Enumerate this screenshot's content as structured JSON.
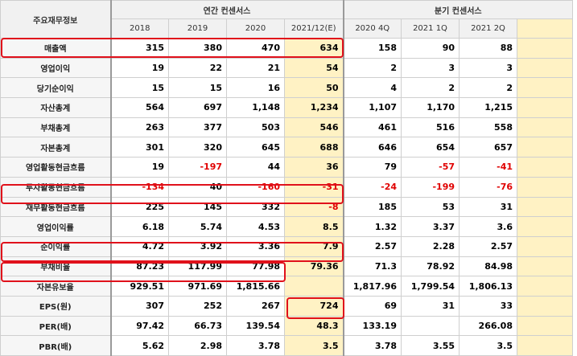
{
  "corner_label": "주요재무정보",
  "annual_group": "연간 컨센서스",
  "quarter_group": "분기 컨센서스",
  "annual_years": [
    "2018",
    "2019",
    "2020",
    "2021/12(E)"
  ],
  "quarter_periods": [
    "2020 4Q",
    "2021 1Q",
    "2021 2Q"
  ],
  "rows": [
    {
      "label": "매출액",
      "annual": [
        "315",
        "380",
        "470",
        "634"
      ],
      "quarter": [
        "158",
        "90",
        "88"
      ]
    },
    {
      "label": "영업이익",
      "annual": [
        "19",
        "22",
        "21",
        "54"
      ],
      "quarter": [
        "2",
        "3",
        "3"
      ]
    },
    {
      "label": "당기순이익",
      "annual": [
        "15",
        "15",
        "16",
        "50"
      ],
      "quarter": [
        "4",
        "2",
        "2"
      ]
    },
    {
      "label": "자산총계",
      "annual": [
        "564",
        "697",
        "1,148",
        "1,234"
      ],
      "quarter": [
        "1,107",
        "1,170",
        "1,215"
      ]
    },
    {
      "label": "부채총계",
      "annual": [
        "263",
        "377",
        "503",
        "546"
      ],
      "quarter": [
        "461",
        "516",
        "558"
      ]
    },
    {
      "label": "자본총계",
      "annual": [
        "301",
        "320",
        "645",
        "688"
      ],
      "quarter": [
        "646",
        "654",
        "657"
      ]
    },
    {
      "label": "영업활동현금흐름",
      "annual": [
        "19",
        "-197",
        "44",
        "36"
      ],
      "quarter": [
        "79",
        "-57",
        "-41"
      ]
    },
    {
      "label": "투자활동현금흐름",
      "annual": [
        "-134",
        "40",
        "-160",
        "-31"
      ],
      "quarter": [
        "-24",
        "-199",
        "-76"
      ]
    },
    {
      "label": "재무활동현금흐름",
      "annual": [
        "225",
        "145",
        "332",
        "-8"
      ],
      "quarter": [
        "185",
        "53",
        "31"
      ]
    },
    {
      "label": "영업이익률",
      "annual": [
        "6.18",
        "5.74",
        "4.53",
        "8.5"
      ],
      "quarter": [
        "1.32",
        "3.37",
        "3.6"
      ]
    },
    {
      "label": "순이익률",
      "annual": [
        "4.72",
        "3.92",
        "3.36",
        "7.9"
      ],
      "quarter": [
        "2.57",
        "2.28",
        "2.57"
      ]
    },
    {
      "label": "부채비율",
      "annual": [
        "87.23",
        "117.99",
        "77.98",
        "79.36"
      ],
      "quarter": [
        "71.3",
        "78.92",
        "84.98"
      ]
    },
    {
      "label": "자본유보율",
      "annual": [
        "929.51",
        "971.69",
        "1,815.66",
        ""
      ],
      "quarter": [
        "1,817.96",
        "1,799.54",
        "1,806.13"
      ]
    },
    {
      "label": "EPS(원)",
      "annual": [
        "307",
        "252",
        "267",
        "724"
      ],
      "quarter": [
        "69",
        "31",
        "33"
      ]
    },
    {
      "label": "PER(배)",
      "annual": [
        "97.42",
        "66.73",
        "139.54",
        "48.3"
      ],
      "quarter": [
        "133.19",
        "",
        "266.08"
      ]
    },
    {
      "label": "PBR(배)",
      "annual": [
        "5.62",
        "2.98",
        "3.78",
        "3.5"
      ],
      "quarter": [
        "3.78",
        "3.55",
        "3.5"
      ]
    }
  ],
  "colors": {
    "highlight_border": "#e0111b",
    "estimate_fill": "#fff2c4",
    "negative_text": "#e00000"
  }
}
